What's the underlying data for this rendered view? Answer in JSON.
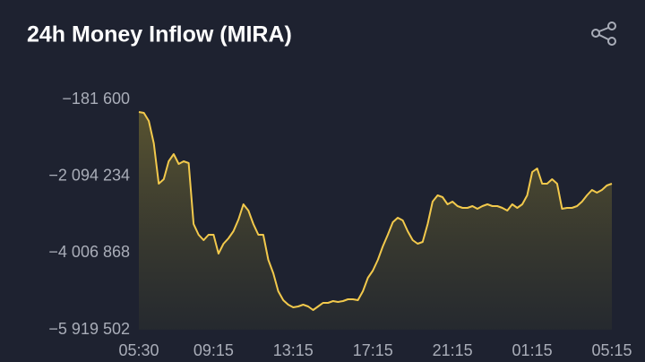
{
  "chart_data": {
    "type": "line",
    "title": "24h Money Inflow (MIRA)",
    "categories": [
      "05:30",
      null,
      null,
      null,
      null,
      null,
      null,
      null,
      null,
      null,
      null,
      null,
      null,
      null,
      null,
      "09:15",
      null,
      null,
      null,
      null,
      null,
      null,
      null,
      null,
      null,
      null,
      null,
      null,
      null,
      null,
      null,
      "13:15",
      null,
      null,
      null,
      null,
      null,
      null,
      null,
      null,
      null,
      null,
      null,
      null,
      null,
      null,
      null,
      "17:15",
      null,
      null,
      null,
      null,
      null,
      null,
      null,
      null,
      null,
      null,
      null,
      null,
      null,
      null,
      null,
      "21:15",
      null,
      null,
      null,
      null,
      null,
      null,
      null,
      null,
      null,
      null,
      null,
      null,
      null,
      null,
      null,
      "01:15",
      null,
      null,
      null,
      null,
      null,
      null,
      null,
      null,
      null,
      null,
      null,
      null,
      null,
      null,
      null,
      "05:15"
    ],
    "values": [
      -494000,
      -517000,
      -717000,
      -1276000,
      -2280000,
      -2169000,
      -1722000,
      -1544000,
      -1789000,
      -1722000,
      -1767000,
      -3285000,
      -3553000,
      -3687000,
      -3553000,
      -3553000,
      -4022000,
      -3776000,
      -3643000,
      -3464000,
      -3174000,
      -2794000,
      -2950000,
      -3285000,
      -3553000,
      -3553000,
      -4178000,
      -4513000,
      -4960000,
      -5183000,
      -5295000,
      -5362000,
      -5339000,
      -5295000,
      -5339000,
      -5429000,
      -5339000,
      -5250000,
      -5250000,
      -5205000,
      -5228000,
      -5205000,
      -5161000,
      -5161000,
      -5183000,
      -4960000,
      -4625000,
      -4446000,
      -4178000,
      -3843000,
      -3553000,
      -3241000,
      -3129000,
      -3196000,
      -3464000,
      -3687000,
      -3776000,
      -3732000,
      -3285000,
      -2727000,
      -2571000,
      -2616000,
      -2794000,
      -2727000,
      -2839000,
      -2883000,
      -2883000,
      -2839000,
      -2906000,
      -2839000,
      -2794000,
      -2839000,
      -2839000,
      -2883000,
      -2950000,
      -2794000,
      -2883000,
      -2794000,
      -2571000,
      -1990000,
      -1901000,
      -2280000,
      -2280000,
      -2169000,
      -2280000,
      -2906000,
      -2883000,
      -2883000,
      -2839000,
      -2727000,
      -2571000,
      -2437000,
      -2504000,
      -2437000,
      -2325000,
      -2280000
    ],
    "color": "#f2c94c",
    "ylim": [
      -5919502,
      -181600
    ],
    "yticks": [
      {
        "value": -5919502,
        "label": "−5 919 502"
      },
      {
        "value": -4006868,
        "label": "−4 006 868"
      },
      {
        "value": -2094234,
        "label": "−2 094 234"
      },
      {
        "value": -181600,
        "label": "−181 600"
      }
    ]
  }
}
